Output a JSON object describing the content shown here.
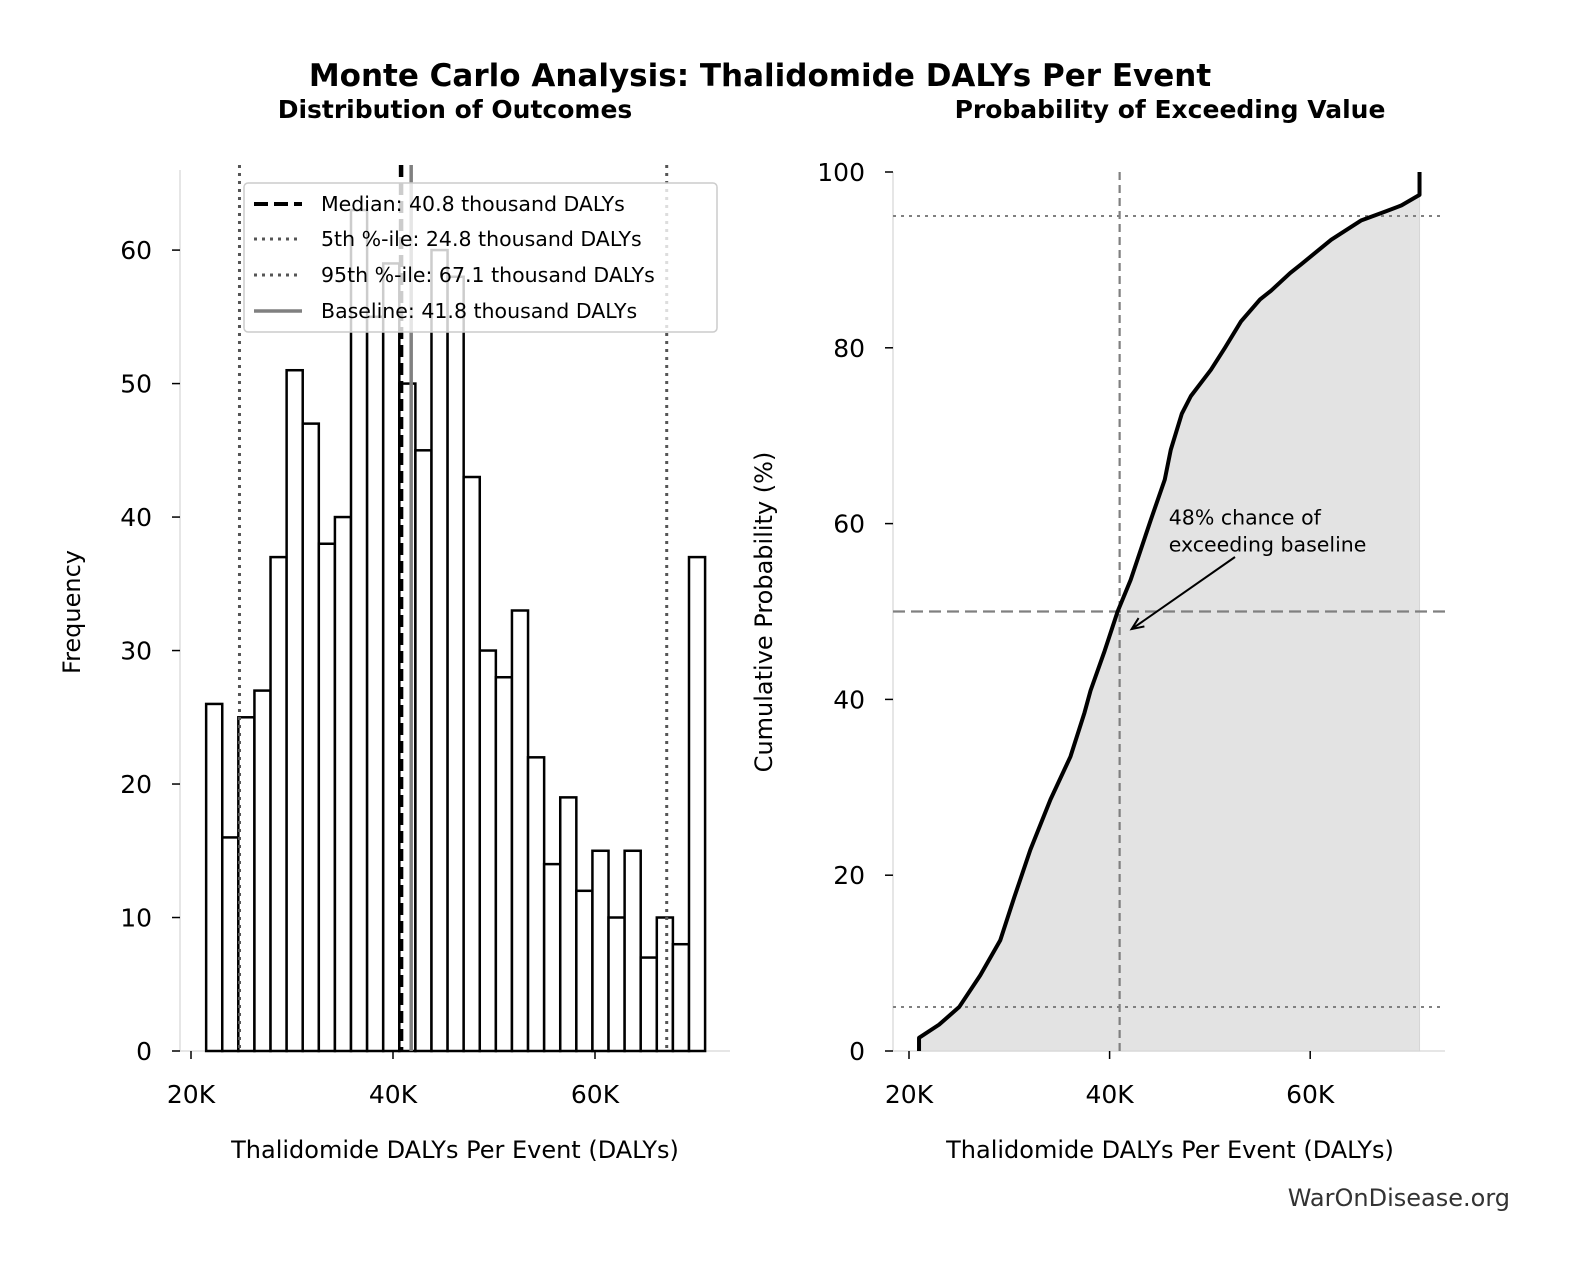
{
  "title": "Monte Carlo Analysis: Thalidomide DALYs Per Event",
  "credit": "WarOnDisease.org",
  "colors": {
    "bar_edge": "#000000",
    "bar_fill": "#ffffff",
    "median": "#000000",
    "percentile": "#555555",
    "baseline": "#808080",
    "cdf_line": "#000000",
    "cdf_fill": "#e3e3e3",
    "ref_lines": "#808080"
  },
  "chart_data": [
    {
      "type": "bar",
      "subtitle": "Distribution of Outcomes",
      "xlabel": "Thalidomide DALYs Per Event (DALYs)",
      "ylabel": "Frequency",
      "xlim": [
        19,
        72
      ],
      "ylim": [
        0,
        66
      ],
      "grid": false,
      "bin_range": [
        21.5,
        70.9
      ],
      "values": [
        26,
        16,
        25,
        27,
        37,
        51,
        47,
        38,
        40,
        63,
        55,
        59,
        50,
        45,
        60,
        58,
        43,
        30,
        28,
        33,
        22,
        14,
        19,
        12,
        15,
        10,
        15,
        7,
        10,
        8,
        37
      ],
      "xticks": [
        {
          "value": 20,
          "label": "20K"
        },
        {
          "value": 40,
          "label": "40K"
        },
        {
          "value": 60,
          "label": "60K"
        }
      ],
      "yticks": [
        {
          "value": 0,
          "label": "0"
        },
        {
          "value": 10,
          "label": "10"
        },
        {
          "value": 20,
          "label": "20"
        },
        {
          "value": 30,
          "label": "30"
        },
        {
          "value": 40,
          "label": "40"
        },
        {
          "value": 50,
          "label": "50"
        },
        {
          "value": 60,
          "label": "60"
        }
      ],
      "vlines": [
        {
          "name": "Median: 40.8 thousand DALYs",
          "value": 40.8,
          "style": "dashed",
          "color": "#000000"
        },
        {
          "name": "5th %-ile: 24.8 thousand DALYs",
          "value": 24.8,
          "style": "dotted",
          "color": "#555555"
        },
        {
          "name": "95th %-ile: 67.1 thousand DALYs",
          "value": 67.1,
          "style": "dotted",
          "color": "#555555"
        },
        {
          "name": "Baseline: 41.8 thousand DALYs",
          "value": 41.8,
          "style": "solid",
          "color": "#808080"
        }
      ],
      "legend_position": "top-right"
    },
    {
      "type": "area",
      "subtitle": "Probability of Exceeding Value",
      "xlabel": "Thalidomide DALYs Per Event (DALYs)",
      "ylabel": "Cumulative Probability (%)",
      "xlim": [
        19,
        72.5
      ],
      "ylim": [
        0,
        100
      ],
      "grid": false,
      "x": [
        21.0,
        21.0,
        23.0,
        25.0,
        27.1,
        29.1,
        30.5,
        32.1,
        34.1,
        36.1,
        37.5,
        38.1,
        39.5,
        40.8,
        42.1,
        44.1,
        45.5,
        46.1,
        47.2,
        48.1,
        50.1,
        51.5,
        53.1,
        55.0,
        56.1,
        58.0,
        59.1,
        62.1,
        65.1,
        67.5,
        69.1,
        70.9,
        70.9
      ],
      "y": [
        0,
        1.5,
        3.0,
        5.0,
        8.6,
        12.6,
        17.5,
        22.9,
        28.6,
        33.5,
        38.5,
        41.0,
        45.5,
        50.0,
        53.6,
        60.4,
        65.0,
        68.4,
        72.5,
        74.5,
        77.5,
        80.0,
        83.0,
        85.5,
        86.5,
        88.5,
        89.5,
        92.3,
        94.5,
        95.5,
        96.2,
        97.4,
        100
      ],
      "hlines": [
        {
          "value": 50,
          "style": "dashed"
        },
        {
          "value": 5,
          "style": "dotted"
        },
        {
          "value": 95,
          "style": "dotted"
        }
      ],
      "vline": {
        "value": 41.0,
        "style": "dashed"
      },
      "annotation": {
        "text_line1": "48% chance of",
        "text_line2": "exceeding baseline",
        "text_at": [
          45.9,
          57.5
        ],
        "arrow_to": [
          42.2,
          48
        ]
      },
      "xticks": [
        {
          "value": 20,
          "label": "20K"
        },
        {
          "value": 40,
          "label": "40K"
        },
        {
          "value": 60,
          "label": "60K"
        }
      ],
      "yticks": [
        {
          "value": 0,
          "label": "0"
        },
        {
          "value": 20,
          "label": "20"
        },
        {
          "value": 40,
          "label": "40"
        },
        {
          "value": 60,
          "label": "60"
        },
        {
          "value": 80,
          "label": "80"
        },
        {
          "value": 100,
          "label": "100"
        }
      ]
    }
  ]
}
